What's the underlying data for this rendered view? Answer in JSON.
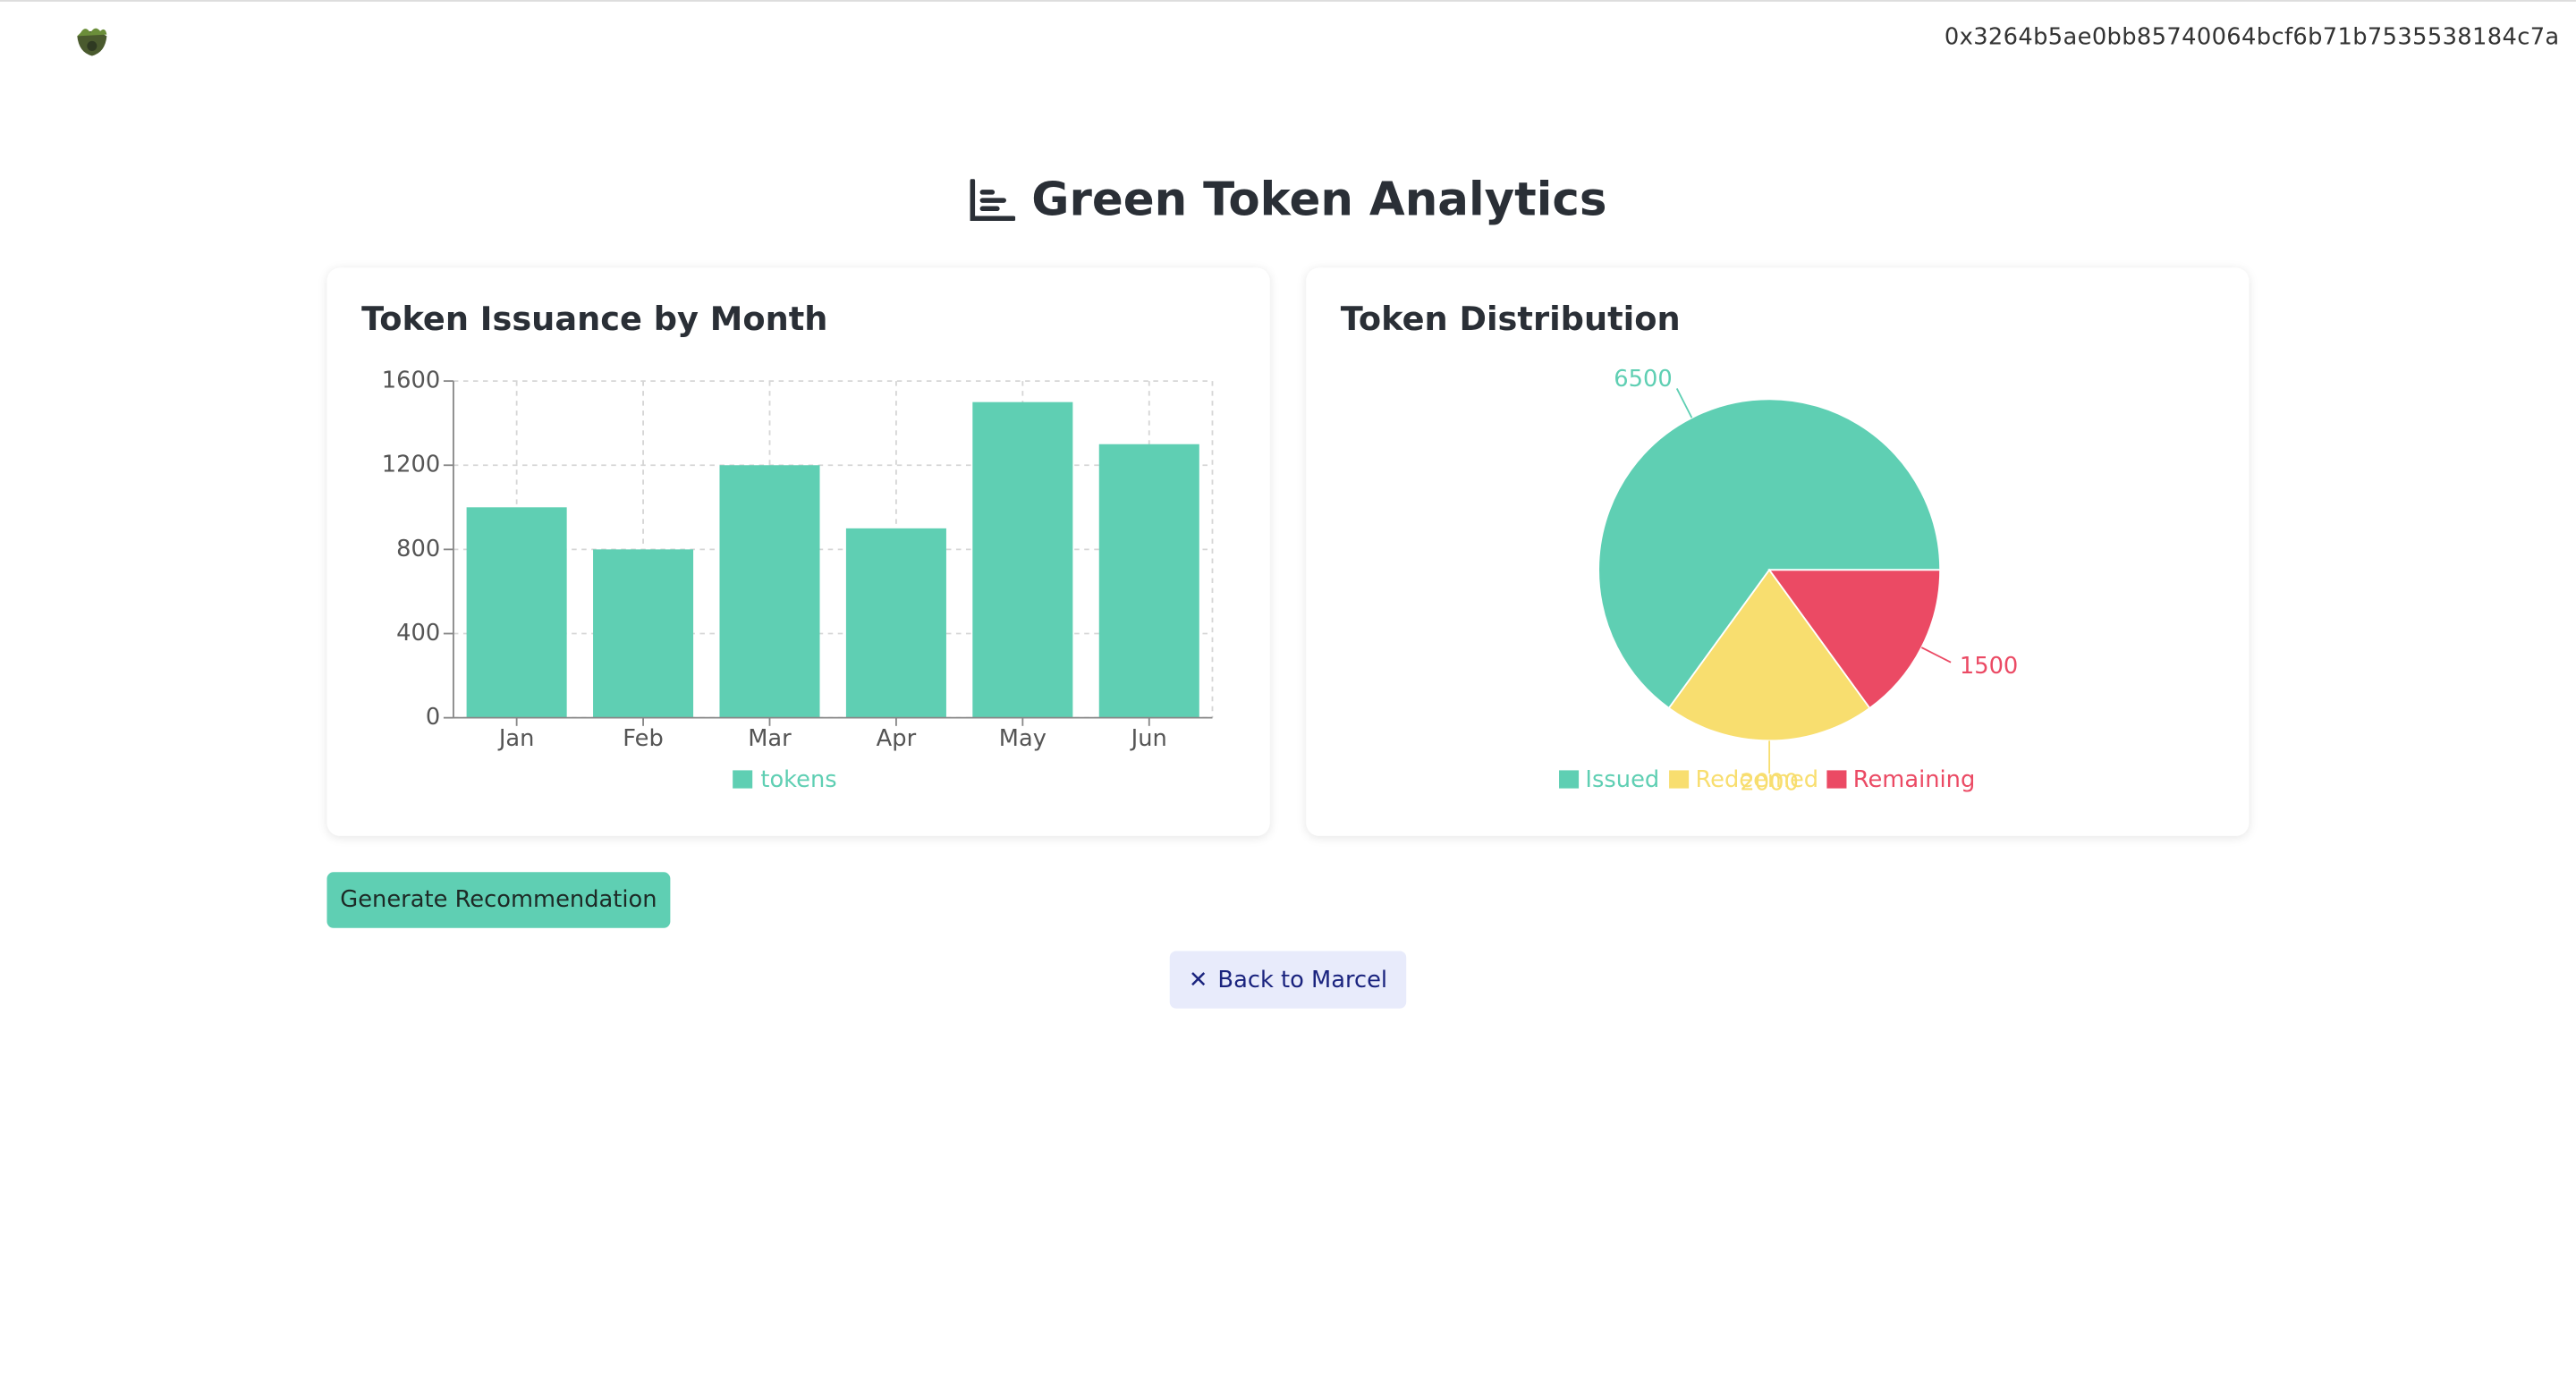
{
  "header": {
    "address": "0x3264b5ae0bb85740064bcf6b71b7535538184c7a"
  },
  "page_title": "Green Token Analytics",
  "chart_data": [
    {
      "type": "bar",
      "title": "Token Issuance by Month",
      "categories": [
        "Jan",
        "Feb",
        "Mar",
        "Apr",
        "May",
        "Jun"
      ],
      "series": [
        {
          "name": "tokens",
          "color": "#5fcfb3",
          "values": [
            1000,
            800,
            1200,
            900,
            1500,
            1300
          ]
        }
      ],
      "ylim": [
        0,
        1600
      ],
      "yticks": [
        0,
        400,
        800,
        1200,
        1600
      ],
      "grid": true
    },
    {
      "type": "pie",
      "title": "Token Distribution",
      "categories": [
        "Issued",
        "Redeemed",
        "Remaining"
      ],
      "values": [
        6500,
        2000,
        1500
      ],
      "colors": [
        "#5fcfb3",
        "#f8de6f",
        "#eb4a64"
      ]
    }
  ],
  "buttons": {
    "generate": "Generate Recommendation",
    "back": "Back to Marcel"
  }
}
